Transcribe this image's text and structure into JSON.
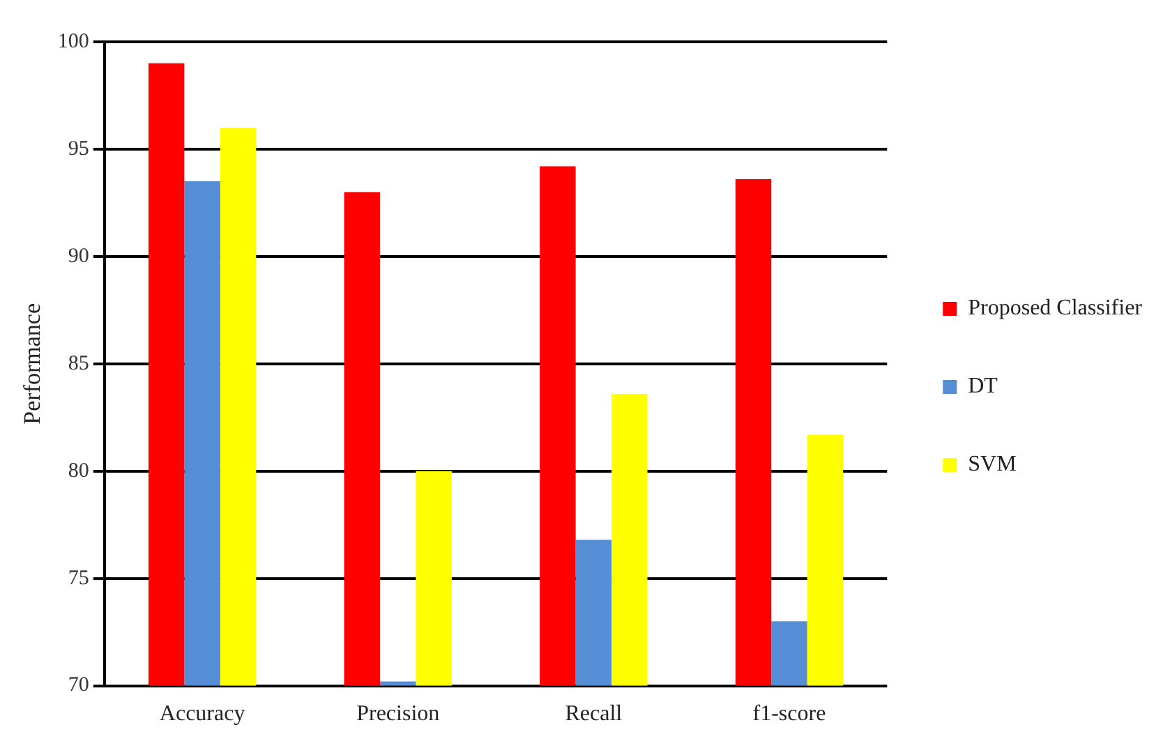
{
  "chart_data": {
    "type": "bar",
    "ylabel": "Performance",
    "categories": [
      "Accuracy",
      "Precision",
      "Recall",
      "f1-score"
    ],
    "series": [
      {
        "name": "Proposed Classifier",
        "color": "#ff0000",
        "values": [
          99,
          93,
          94.2,
          93.6
        ]
      },
      {
        "name": "DT",
        "color": "#558ed5",
        "values": [
          93.5,
          70.2,
          76.8,
          73
        ]
      },
      {
        "name": "SVM",
        "color": "#ffff00",
        "values": [
          96,
          80,
          83.6,
          81.7
        ]
      }
    ],
    "ylim": [
      70,
      100
    ],
    "yticks": [
      70,
      75,
      80,
      85,
      90,
      95,
      100
    ],
    "grid": "y",
    "legend": "right"
  }
}
